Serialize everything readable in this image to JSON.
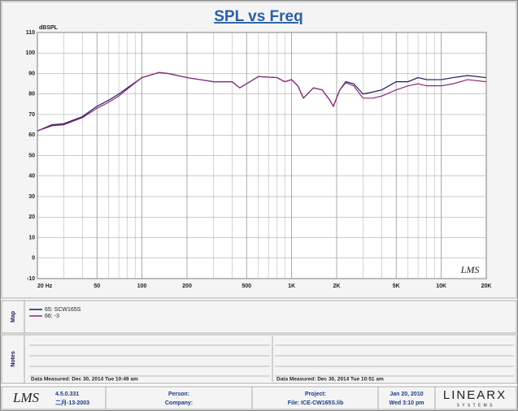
{
  "chart_data": {
    "type": "line",
    "title": "SPL vs Freq",
    "y_label": "dBSPL",
    "x": [
      20,
      25,
      30,
      40,
      50,
      60,
      70,
      80,
      100,
      130,
      150,
      200,
      300,
      400,
      450,
      500,
      600,
      800,
      900,
      1000,
      1100,
      1200,
      1400,
      1600,
      1800,
      1900,
      2100,
      2300,
      2600,
      3000,
      3500,
      4000,
      5000,
      6000,
      7000,
      8000,
      10000,
      12000,
      15000,
      20000
    ],
    "series": [
      {
        "name": "65: SCW165S",
        "color": "#1a1a5e",
        "values": [
          62,
          65,
          65.5,
          69,
          74,
          77,
          80,
          83,
          88,
          90.5,
          90,
          88,
          86,
          86,
          83,
          85,
          88.5,
          88,
          86,
          87,
          84,
          78,
          83,
          82,
          77,
          74,
          82,
          86,
          85,
          80,
          81,
          82,
          86,
          86,
          88,
          87,
          87,
          88,
          89,
          88
        ]
      },
      {
        "name": "66: -3",
        "color": "#8b2a7a",
        "values": [
          62,
          64.5,
          65,
          68.5,
          73,
          76,
          79,
          82.5,
          88,
          90.5,
          90,
          88,
          86,
          86,
          83,
          85,
          88.5,
          88,
          86,
          87,
          84,
          78,
          83,
          82,
          77,
          74,
          82,
          85.5,
          84,
          78,
          78,
          79,
          82,
          84,
          85,
          84,
          84,
          85,
          87,
          86
        ]
      }
    ],
    "log_x": true,
    "xlim": [
      20,
      20000
    ],
    "xticks": [
      {
        "value": 20,
        "label": "20 Hz"
      },
      50,
      100,
      200,
      500,
      {
        "value": 1000,
        "label": "1K"
      },
      {
        "value": 2000,
        "label": "2K"
      },
      {
        "value": 5000,
        "label": "5K"
      },
      {
        "value": 10000,
        "label": "10K"
      },
      {
        "value": 20000,
        "label": "20K"
      }
    ],
    "xminor": [
      30,
      40,
      60,
      70,
      80,
      90,
      300,
      400,
      600,
      700,
      800,
      900,
      3000,
      4000,
      6000,
      7000,
      8000,
      9000
    ],
    "ylim": [
      -10,
      110
    ],
    "yticks": [
      -10,
      0,
      10,
      20,
      30,
      40,
      50,
      60,
      70,
      80,
      90,
      100,
      110
    ],
    "grid": true,
    "watermark": "LMS"
  },
  "map": {
    "label": "Map"
  },
  "notes": {
    "label": "Notes",
    "left": "Data Measured: Dec 30, 2014  Tue 10:49 am",
    "right": "Data Measured: Dec 30, 2014  Tue 10:51 am"
  },
  "footer": {
    "logo": "LMS",
    "version": "4.5.0.331",
    "date": "二月-13-2003",
    "person": "Person:",
    "company": "Company:",
    "project": "Project:",
    "file": "File: ICE-CW165S.lib",
    "print_date": "Jan 20, 2010",
    "print_time": "Wed  3:10 pm",
    "brand": "LINEARX",
    "brand_sub": "S Y S T E M S"
  }
}
